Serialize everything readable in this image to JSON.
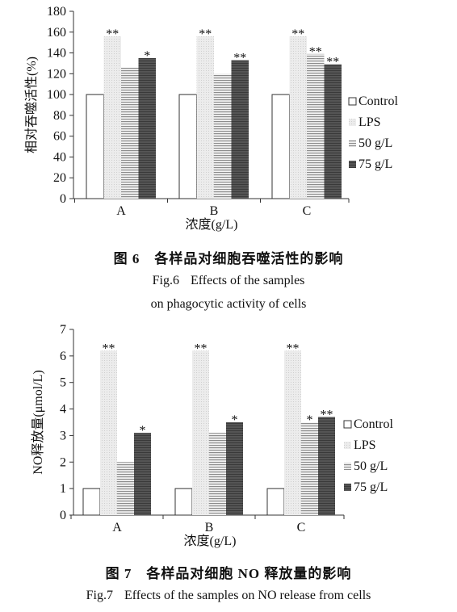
{
  "chart_data": [
    {
      "type": "bar",
      "categories": [
        "A",
        "B",
        "C"
      ],
      "series": [
        {
          "name": "Control",
          "values": [
            100,
            100,
            100
          ]
        },
        {
          "name": "LPS",
          "values": [
            156,
            156,
            156
          ]
        },
        {
          "name": "50 g/L",
          "values": [
            126,
            120,
            139
          ]
        },
        {
          "name": "75 g/L",
          "values": [
            135,
            133,
            129
          ]
        }
      ],
      "significance": [
        [
          "",
          "**",
          "",
          "*"
        ],
        [
          "",
          "**",
          "",
          "**"
        ],
        [
          "",
          "**",
          "**",
          "**"
        ]
      ],
      "xlabel": "浓度(g/L)",
      "ylabel": "相对吞噬活性(%)",
      "ylim": [
        0,
        180
      ],
      "yticks": [
        0,
        20,
        40,
        60,
        80,
        100,
        120,
        140,
        160,
        180
      ],
      "grid": false,
      "legend": "right",
      "caption_cn_tag": "图 6",
      "caption_cn": "各样品对细胞吞噬活性的影响",
      "caption_en_tag": "Fig.6",
      "caption_en_line1": "Effects of the samples",
      "caption_en_line2": "on phagocytic activity of cells"
    },
    {
      "type": "bar",
      "categories": [
        "A",
        "B",
        "C"
      ],
      "series": [
        {
          "name": "Control",
          "values": [
            1,
            1,
            1
          ]
        },
        {
          "name": "LPS",
          "values": [
            6.2,
            6.2,
            6.2
          ]
        },
        {
          "name": "50 g/L",
          "values": [
            2.0,
            3.1,
            3.5
          ]
        },
        {
          "name": "75 g/L",
          "values": [
            3.1,
            3.5,
            3.7
          ]
        }
      ],
      "significance": [
        [
          "",
          "**",
          "",
          "*"
        ],
        [
          "",
          "**",
          "",
          "*"
        ],
        [
          "",
          "**",
          "*",
          "**"
        ]
      ],
      "xlabel": "浓度(g/L)",
      "ylabel": "NO释放量(μmol/L)",
      "ylim": [
        0,
        7
      ],
      "yticks": [
        0,
        1,
        2,
        3,
        4,
        5,
        6,
        7
      ],
      "grid": false,
      "legend": "right",
      "caption_cn_tag": "图 7",
      "caption_cn": "各样品对细胞 NO 释放量的影响",
      "caption_en_tag": "Fig.7",
      "caption_en_line1": "Effects of the samples on NO release from cells"
    }
  ],
  "colors": {
    "control_fill": "#ffffff",
    "lps_fill": "#e6e6e6",
    "g50_fill": "#f2f2f2",
    "g50_stripe": "#8c8c8c",
    "g75_fill": "#555555",
    "g75_stripe": "#3a3a3a",
    "axis": "#333333"
  }
}
